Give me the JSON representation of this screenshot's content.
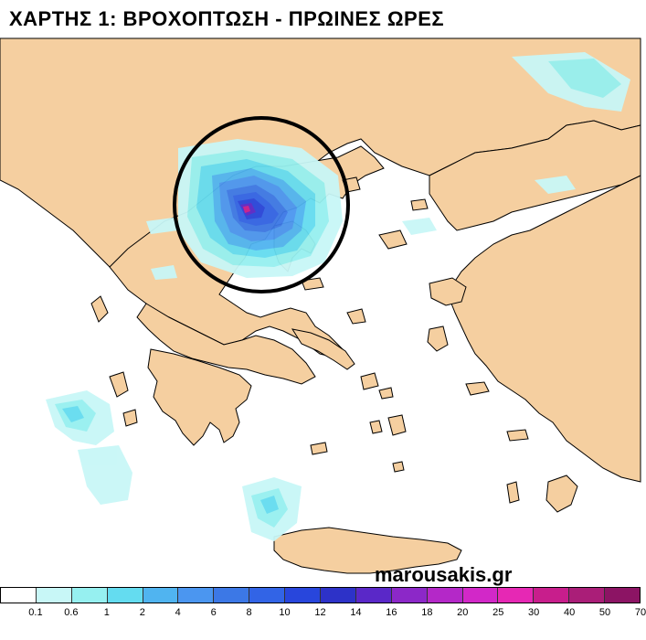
{
  "title": "ΧΑΡΤΗΣ 1: ΒΡΟΧΟΠΤΩΣΗ - ΠΡΩΙΝΕΣ ΩΡΕΣ",
  "watermark": "marousakis.gr",
  "colors": {
    "sea": "#ffffff",
    "land": "#f5cfa0",
    "border": "#000000",
    "highlight_circle": "#000000"
  },
  "legend": {
    "labels": [
      "0.1",
      "0.6",
      "1",
      "2",
      "4",
      "6",
      "8",
      "10",
      "12",
      "14",
      "16",
      "18",
      "20",
      "25",
      "30",
      "40",
      "50",
      "70"
    ],
    "colors": [
      "#ffffff",
      "#c8f7f7",
      "#96f0f0",
      "#64dcf0",
      "#50b4f0",
      "#4b96f0",
      "#3c78e6",
      "#3264e6",
      "#2846dc",
      "#2d32c8",
      "#5a28c8",
      "#8c28c8",
      "#b428c8",
      "#d228c8",
      "#e628b4",
      "#c81e8c",
      "#aa1e78",
      "#8c1464"
    ]
  },
  "labels_visible": {
    "region_highlighted": "circle"
  }
}
